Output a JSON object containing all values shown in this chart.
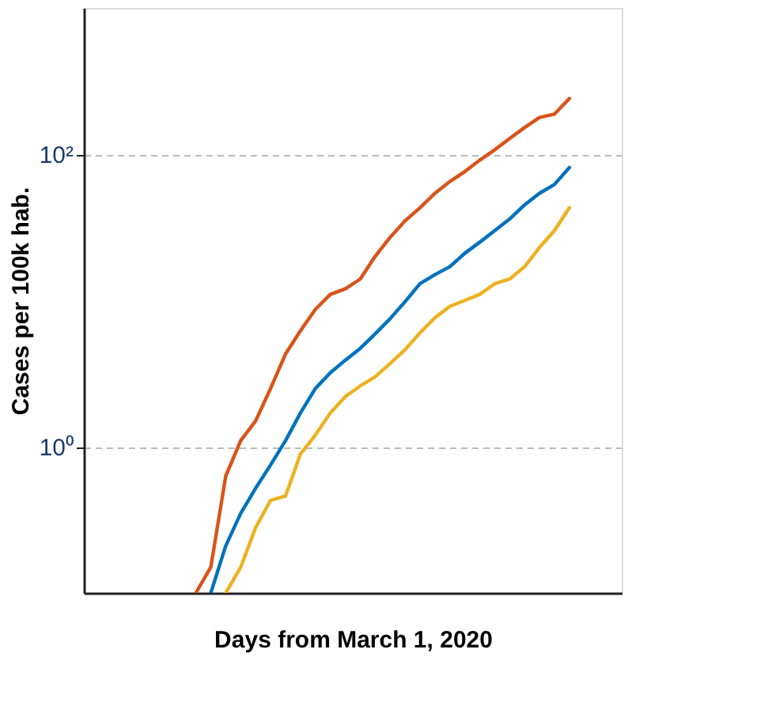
{
  "chart_data": {
    "type": "line",
    "xlabel": "Days from March 1, 2020",
    "ylabel": "Cases per 100k hab.",
    "categories": [
      null,
      null,
      null,
      null,
      null,
      null,
      null,
      null,
      null,
      null,
      null,
      null,
      null,
      null,
      null,
      null,
      null,
      null,
      null,
      null,
      null,
      null,
      null,
      null,
      null,
      null,
      null,
      null,
      null,
      null,
      null,
      null,
      null,
      null,
      null,
      null
    ],
    "series": [
      {
        "color": "#d95319",
        "values": [
          null,
          null,
          null,
          null,
          null,
          null,
          null,
          0.1,
          0.15,
          0.63,
          1.1,
          1.5,
          2.5,
          4.3,
          6.2,
          8.7,
          11,
          12,
          14,
          20,
          27,
          35,
          43,
          54,
          65,
          76,
          91,
          107,
          128,
          152,
          178,
          188,
          240,
          null,
          null,
          null
        ]
      },
      {
        "color": "#0072bd",
        "values": [
          null,
          null,
          null,
          null,
          null,
          null,
          null,
          null,
          0.1,
          0.21,
          0.35,
          0.52,
          0.75,
          1.1,
          1.7,
          2.5,
          3.2,
          3.9,
          4.7,
          5.9,
          7.5,
          9.8,
          13,
          15,
          17,
          21,
          25,
          30,
          36,
          45,
          54,
          62,
          81,
          null,
          null,
          null
        ]
      },
      {
        "color": "#edb120",
        "values": [
          null,
          null,
          null,
          null,
          null,
          null,
          null,
          null,
          null,
          0.1,
          0.15,
          0.28,
          0.43,
          0.46,
          0.89,
          1.2,
          1.7,
          2.2,
          2.6,
          3.0,
          3.7,
          4.6,
          6.0,
          7.6,
          9.1,
          10,
          11,
          13,
          14,
          17,
          23,
          30,
          43,
          null,
          null,
          null
        ]
      }
    ],
    "log": true,
    "ylim": [
      0.1,
      1000
    ],
    "yticks": [
      {
        "value": 1,
        "label": "10⁰"
      },
      {
        "value": 100,
        "label": "10²"
      }
    ],
    "grid": "y",
    "tick_labels": "y",
    "line_style": "solid",
    "marker": "none"
  }
}
